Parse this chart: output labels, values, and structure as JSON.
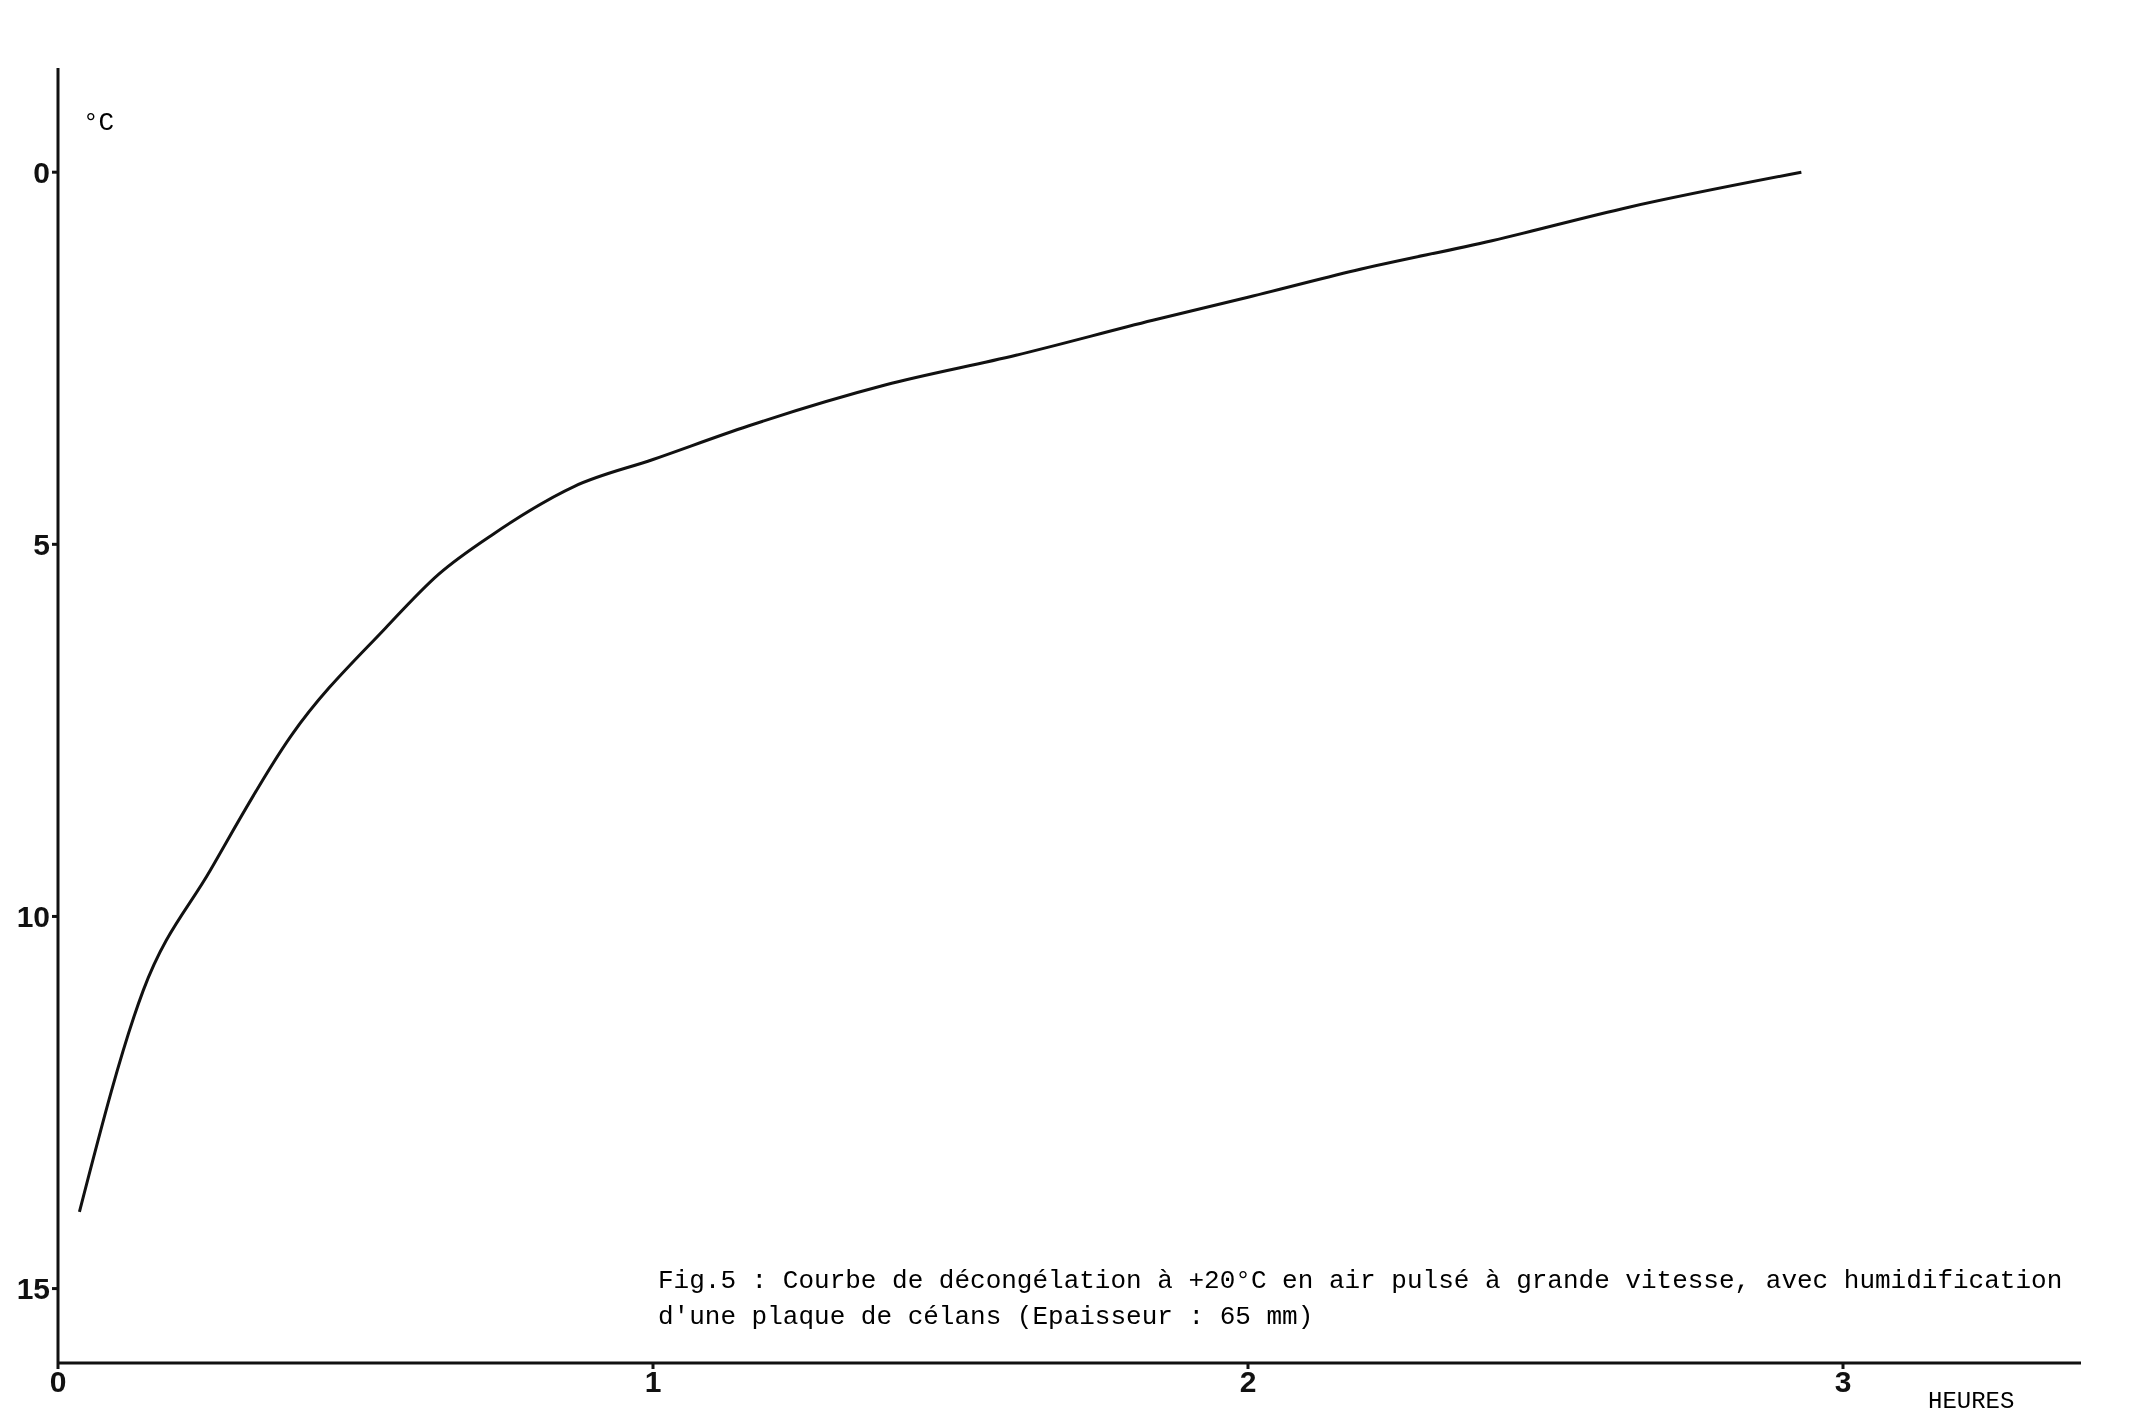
{
  "chart_data": {
    "type": "line",
    "xlabel": "HEURES",
    "ylabel": "°C",
    "annotations": [
      "Fig.5 : Courbe de décongélation à +20°C en air pulsé à grande vitesse, avec humidification d'une plaque de célans (Epaisseur : 65 mm)"
    ],
    "x": [
      0.036,
      0.143,
      0.256,
      0.392,
      0.551,
      0.64,
      0.732,
      0.868,
      1.0,
      1.16,
      1.39,
      1.61,
      1.84,
      2.0,
      2.18,
      2.41,
      2.64,
      2.93
    ],
    "series": [
      {
        "color": "#111111",
        "values": [
          13.97,
          11.0,
          9.38,
          7.57,
          6.12,
          5.4,
          4.86,
          4.22,
          3.86,
          3.41,
          2.86,
          2.46,
          1.99,
          1.68,
          1.32,
          0.92,
          0.47,
          0
        ]
      }
    ],
    "xlim": [
      0,
      3.4
    ],
    "xticks": [
      0,
      1,
      2,
      3
    ],
    "ylim": [
      16,
      -1.4
    ],
    "yticks": [
      0,
      5,
      10,
      15
    ],
    "grid": false,
    "legend": false,
    "marker": "none",
    "line_style": "solid"
  }
}
